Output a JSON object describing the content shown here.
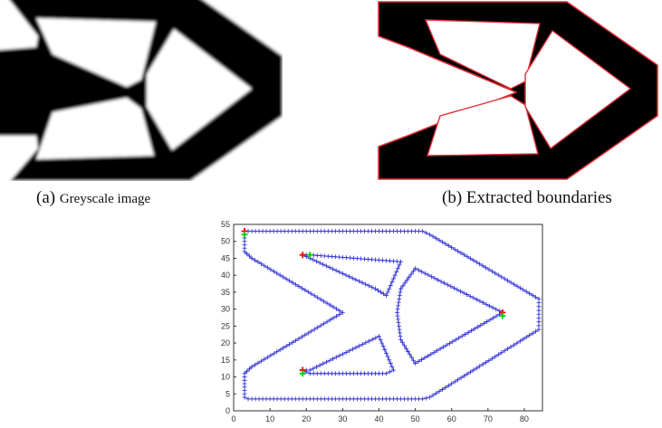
{
  "captions": {
    "a_label": "(a)",
    "a_text": "Greyscale image",
    "b_label": "(b)",
    "b_text": "Extracted boundaries"
  },
  "colors": {
    "structure": "#000000",
    "boundary_red": "#e0303a",
    "boundary_blue": "#2b2bd6",
    "marker_red": "#ff0000",
    "marker_green": "#00cc00"
  },
  "chart_data": {
    "type": "scatter",
    "title": "",
    "xlabel": "",
    "ylabel": "",
    "xlim": [
      0,
      85
    ],
    "ylim": [
      0,
      55
    ],
    "xticks": [
      0,
      10,
      20,
      30,
      40,
      50,
      60,
      70,
      80
    ],
    "yticks": [
      0,
      5,
      10,
      15,
      20,
      25,
      30,
      35,
      40,
      45,
      50,
      55
    ],
    "grid": false,
    "marker": "+",
    "series": [
      {
        "points": [
          [
            3,
            53
          ],
          [
            52,
            53
          ],
          [
            54,
            52
          ],
          [
            84,
            33
          ],
          [
            84,
            24
          ],
          [
            54,
            4
          ],
          [
            52,
            3.5
          ],
          [
            4,
            3.5
          ],
          [
            3,
            4
          ],
          [
            3,
            11
          ],
          [
            5,
            13
          ],
          [
            30,
            29
          ],
          [
            5,
            45
          ],
          [
            3,
            47
          ]
        ]
      },
      {
        "points": [
          [
            19,
            46
          ],
          [
            21,
            46
          ],
          [
            46,
            44
          ],
          [
            42,
            34
          ],
          [
            39,
            36
          ],
          [
            21,
            45
          ]
        ]
      },
      {
        "points": [
          [
            19,
            12
          ],
          [
            21,
            12
          ],
          [
            40,
            22
          ],
          [
            44,
            12
          ],
          [
            42,
            11
          ],
          [
            21,
            11
          ]
        ]
      },
      {
        "points": [
          [
            50,
            42
          ],
          [
            74,
            29
          ],
          [
            50,
            14
          ],
          [
            46,
            21
          ],
          [
            45,
            29
          ],
          [
            46,
            36
          ]
        ]
      }
    ],
    "red_markers": [
      [
        3,
        53
      ],
      [
        19,
        46
      ],
      [
        74,
        29
      ],
      [
        19,
        12
      ]
    ],
    "green_markers": [
      [
        3,
        52
      ],
      [
        21,
        46
      ],
      [
        74,
        28
      ],
      [
        19,
        11
      ]
    ]
  }
}
